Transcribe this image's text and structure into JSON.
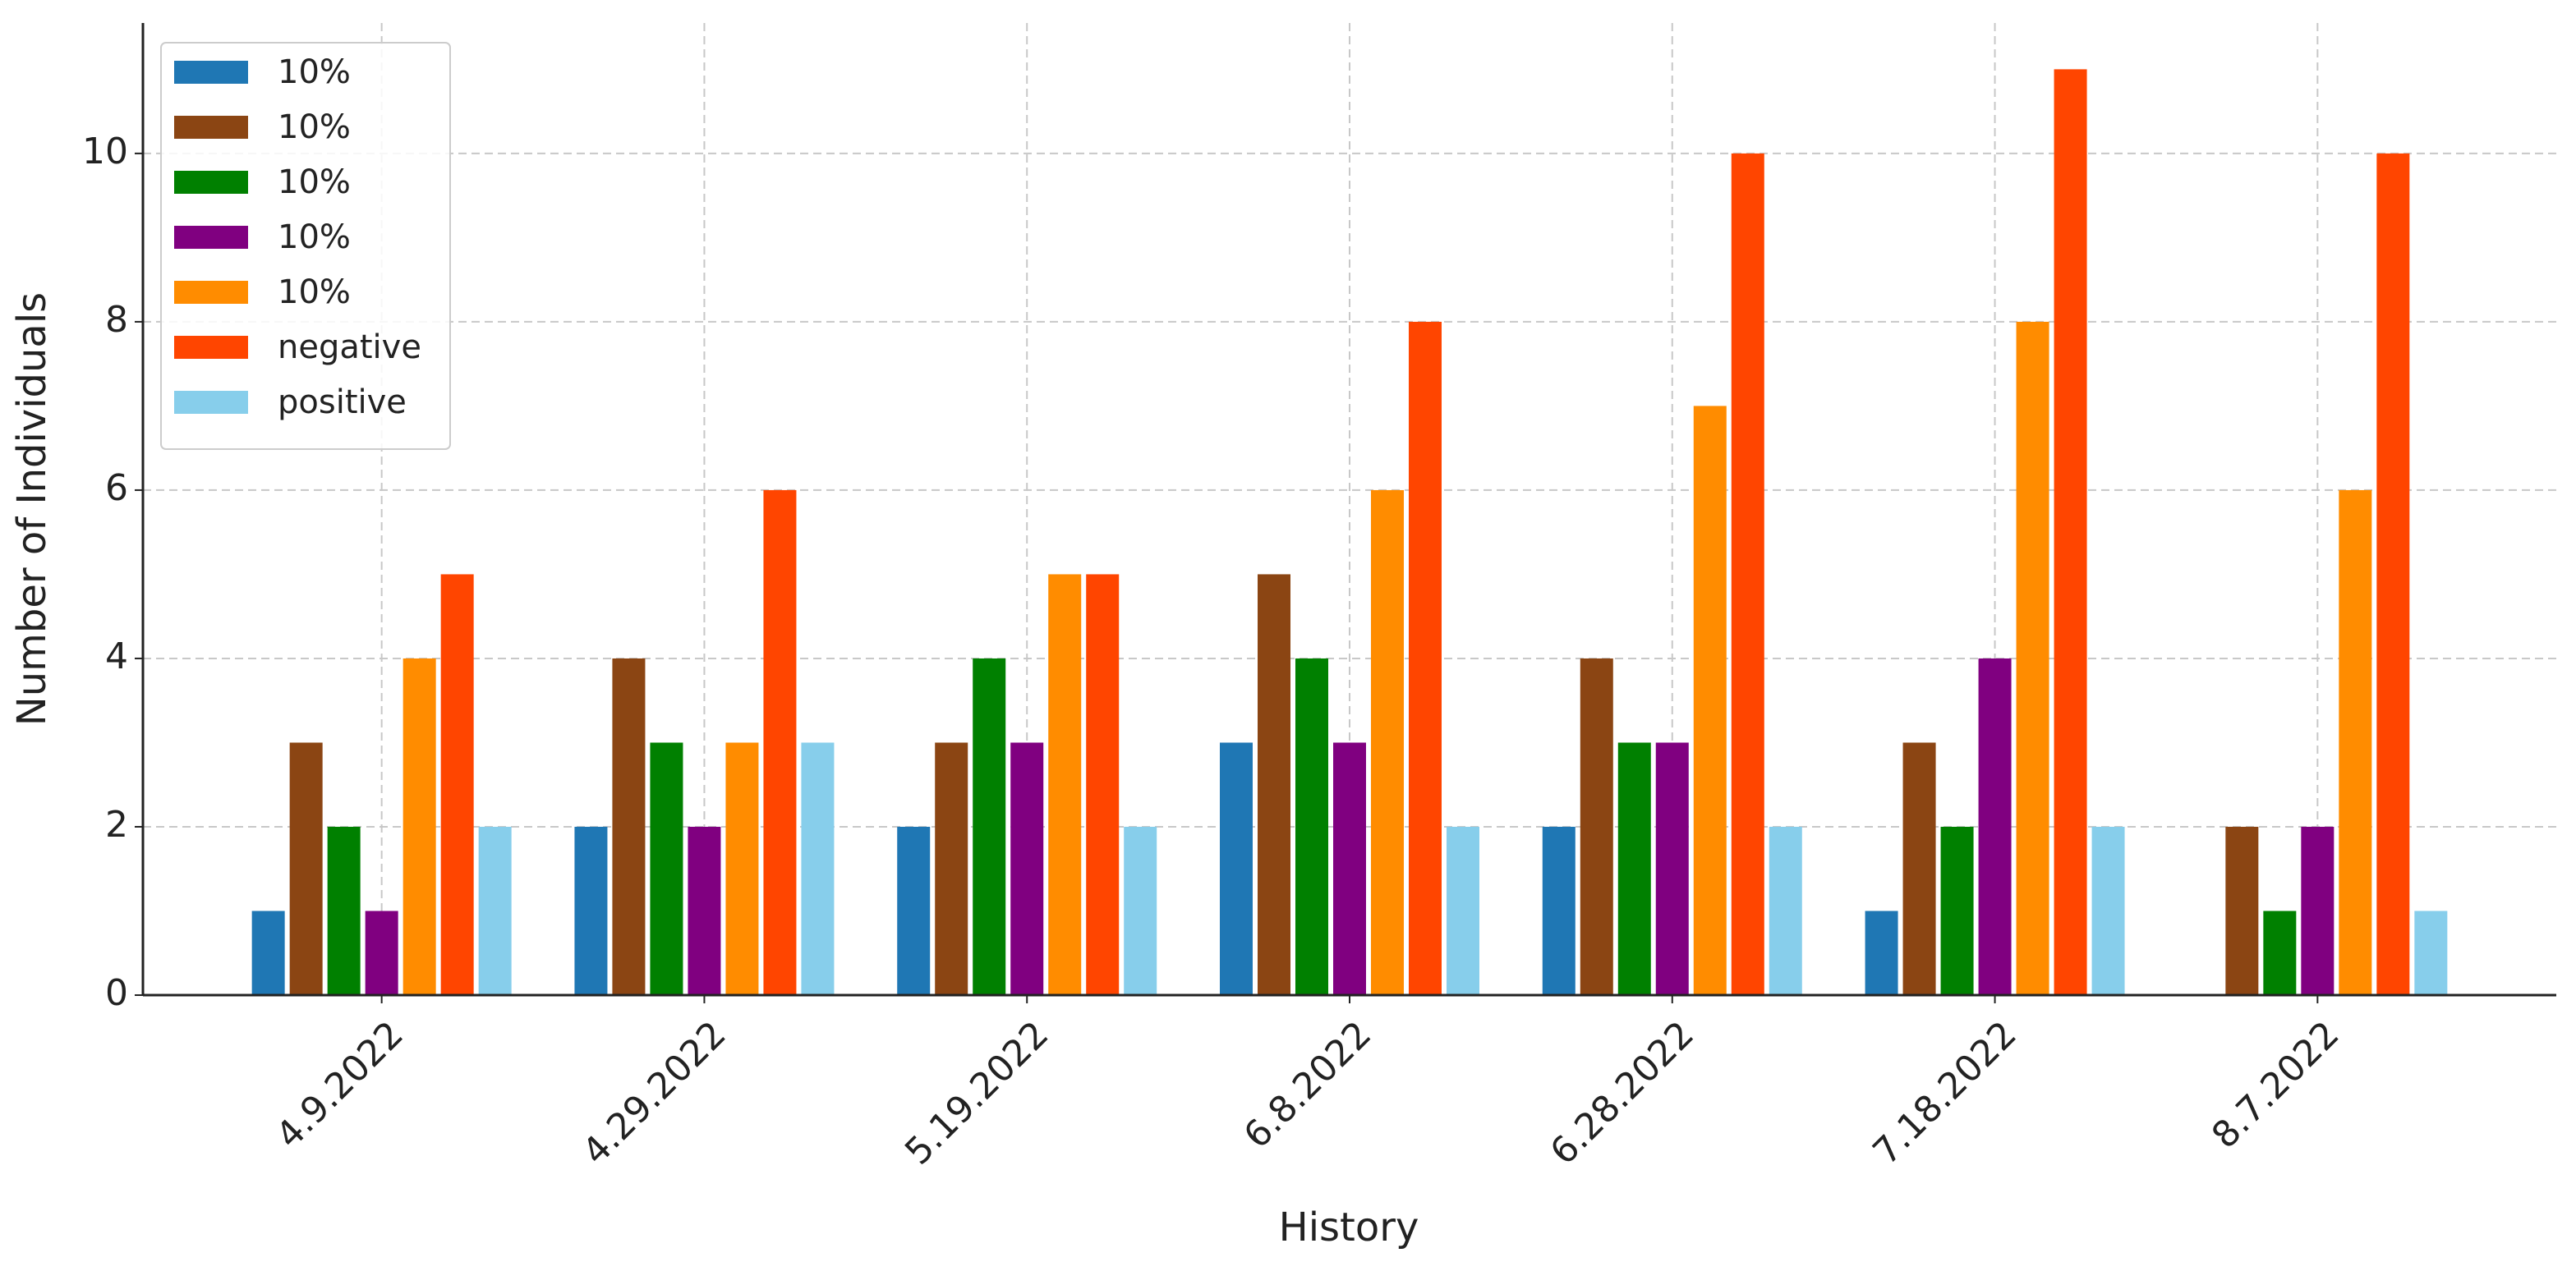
{
  "chart_data": {
    "type": "bar",
    "x_label": "History",
    "y_label": "Number of Individuals",
    "categories": [
      "4.9.2022",
      "4.29.2022",
      "5.19.2022",
      "6.8.2022",
      "6.28.2022",
      "7.18.2022",
      "8.7.2022"
    ],
    "series": [
      {
        "name": "10%",
        "color": "#1f77b4",
        "values": [
          1,
          2,
          2,
          3,
          2,
          1,
          0
        ]
      },
      {
        "name": "10%",
        "color": "#8b4513",
        "values": [
          3,
          4,
          3,
          5,
          4,
          3,
          2
        ]
      },
      {
        "name": "10%",
        "color": "#008000",
        "values": [
          2,
          3,
          4,
          4,
          3,
          2,
          1
        ]
      },
      {
        "name": "10%",
        "color": "#800080",
        "values": [
          1,
          2,
          3,
          3,
          3,
          4,
          2
        ]
      },
      {
        "name": "10%",
        "color": "#ff8c00",
        "values": [
          4,
          3,
          5,
          6,
          7,
          8,
          6
        ]
      },
      {
        "name": "negative",
        "color": "#ff4500",
        "values": [
          5,
          6,
          5,
          8,
          10,
          11,
          10
        ]
      },
      {
        "name": "positive",
        "color": "#87ceeb",
        "values": [
          2,
          3,
          2,
          2,
          2,
          2,
          1
        ]
      }
    ],
    "ylim": [
      0,
      11.55
    ],
    "yticks": [
      0,
      2,
      4,
      6,
      8,
      10
    ],
    "grid": true,
    "legend": "upper left"
  }
}
